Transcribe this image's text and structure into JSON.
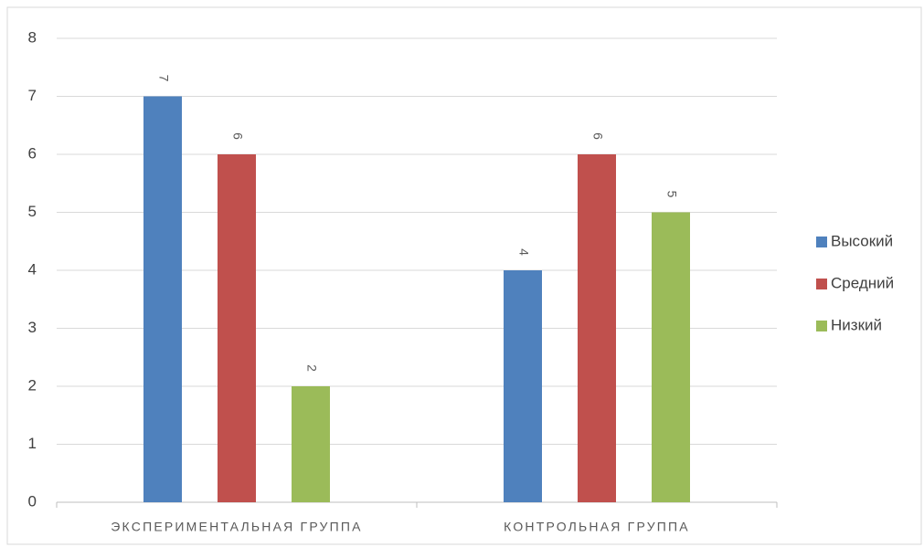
{
  "chart_data": {
    "type": "bar",
    "categories": [
      "ЭКСПЕРИМЕНТАЛЬНАЯ ГРУППА",
      "КОНТРОЛЬНАЯ ГРУППА"
    ],
    "series": [
      {
        "name": "Высокий",
        "color": "#4f81bd",
        "values": [
          7,
          4
        ]
      },
      {
        "name": "Средний",
        "color": "#c0504d",
        "values": [
          6,
          6
        ]
      },
      {
        "name": "Низкий",
        "color": "#9bbb59",
        "values": [
          2,
          5
        ]
      }
    ],
    "ylim": [
      0,
      8
    ],
    "yticks": [
      0,
      1,
      2,
      3,
      4,
      5,
      6,
      7,
      8
    ],
    "grid": true,
    "data_labels": true,
    "legend": "right"
  }
}
